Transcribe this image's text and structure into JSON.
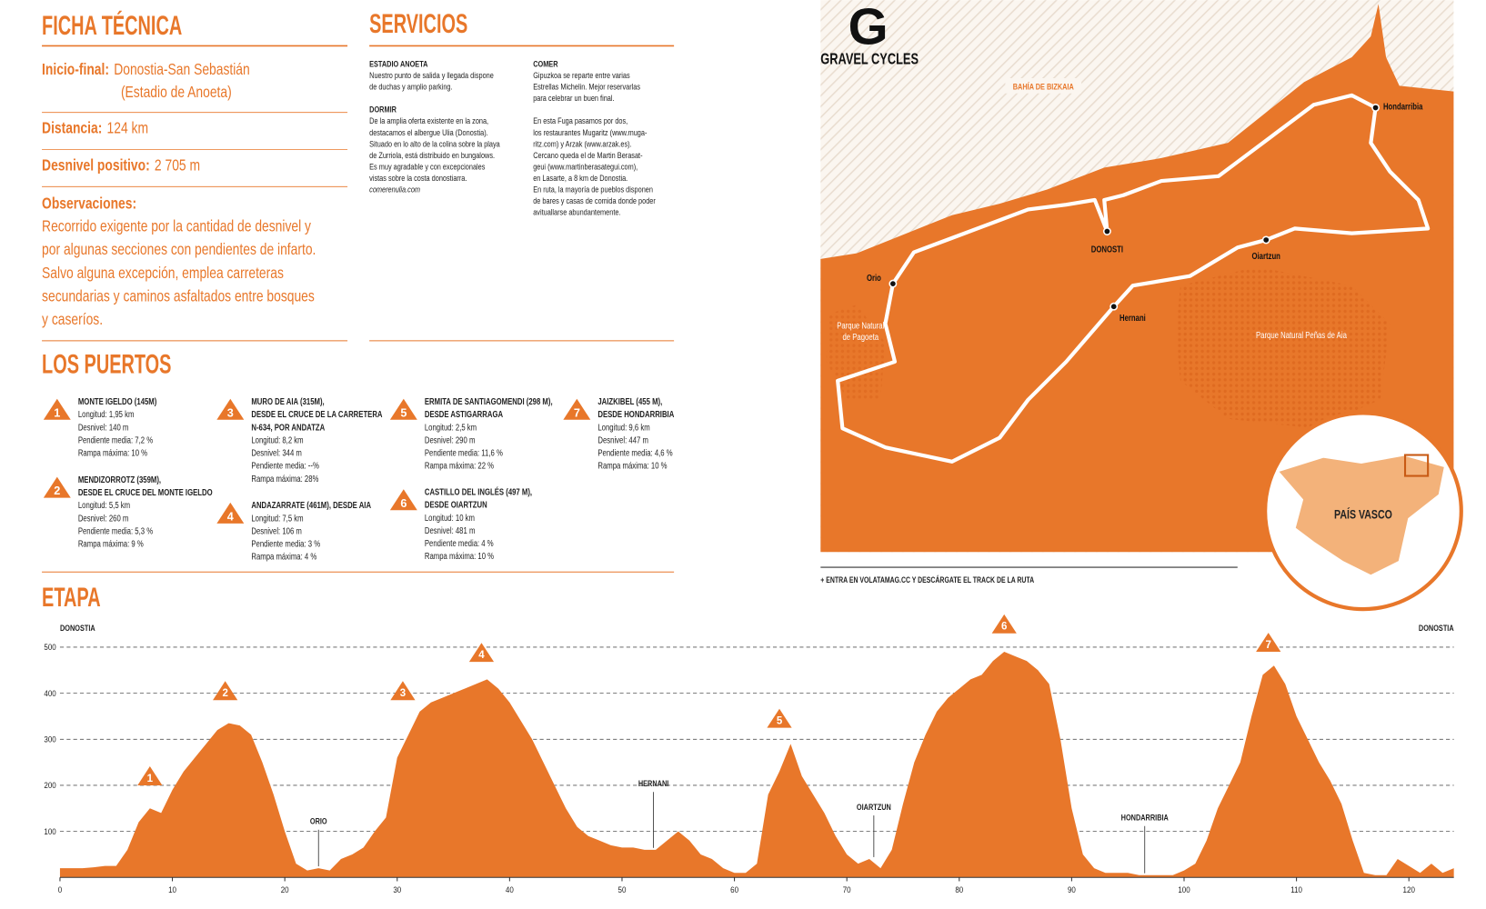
{
  "ficha": {
    "title": "FICHA TÉCNICA",
    "inicio_label": "Inicio-final:",
    "inicio": [
      "Donostia-San Sebastián",
      "(Estadio de Anoeta)"
    ],
    "distancia_label": "Distancia:",
    "distancia": "124 km",
    "desnivel_label": "Desnivel positivo:",
    "desnivel": "2 705 m",
    "observaciones_label": "Observaciones:",
    "observaciones": [
      "Recorrido exigente por la cantidad de desnivel y",
      "por algunas secciones con pendientes de infarto.",
      "Salvo alguna excepción, emplea carreteras",
      "secundarias y caminos asfaltados entre bosques",
      "y caseríos."
    ]
  },
  "servicios": {
    "title": "SERVICIOS",
    "columns": [
      [
        {
          "heading": "ESTADIO ANOETA",
          "lines": [
            "Nuestro punto de salida y llegada dispone",
            "de duchas y amplio parking."
          ]
        },
        {
          "heading": "DORMIR",
          "lines": [
            "De la amplia oferta existente en la zona,",
            "destacamos el albergue Ulia (Donostia).",
            "Situado en lo alto de la colina sobre la playa",
            "de Zurriola, está distribuido en bungalows.",
            "Es muy agradable y con excepcionales",
            "vistas sobre la costa donostiarra.",
            "comerenulia.com"
          ]
        }
      ],
      [
        {
          "heading": "COMER",
          "lines": [
            "Gipuzkoa se reparte entre varias",
            "Estrellas Michelin. Mejor reservarlas",
            "para celebrar un buen final."
          ]
        },
        {
          "lines": [
            "En esta Fuga pasamos por dos,",
            "los restaurantes Mugaritz (www.muga-",
            "ritz.com) y Arzak (www.arzak.es).",
            "Cercano queda el de Martin Berasat-",
            "geui (www.martinberasategui.com),",
            "en Lasarte, a 8 km de Donostia.",
            "En ruta, la mayoría de pueblos disponen",
            "de bares y casas de comida donde poder",
            "avituallarse abundantemente."
          ]
        }
      ]
    ]
  },
  "puertos": {
    "title": "LOS PUERTOS",
    "items": [
      {
        "number": "1",
        "name": [
          "MONTE IGELDO (145M)"
        ],
        "details": [
          "Longitud: 1,95 km",
          "Desnivel: 140 m",
          "Pendiente media: 7,2 %",
          "Rampa máxima: 10 %"
        ]
      },
      {
        "number": "2",
        "name": [
          "MENDIZORROTZ (359M),",
          "DESDE EL CRUCE DEL MONTE IGELDO"
        ],
        "details": [
          "Longitud: 5,5 km",
          "Desnivel: 260 m",
          "Pendiente media: 5,3 %",
          "Rampa máxima: 9 %"
        ]
      },
      {
        "number": "3",
        "name": [
          "MURO DE AIA (315M),",
          "DESDE EL CRUCE DE LA CARRETERA",
          "N-634, POR ANDATZA"
        ],
        "details": [
          "Longitud: 8,2 km",
          "Desnivel: 344 m",
          "Pendiente media: --%",
          "Rampa máxima: 28%"
        ]
      },
      {
        "number": "4",
        "name": [
          "ANDAZARRATE (461M), DESDE AIA"
        ],
        "details": [
          "Longitud: 7,5 km",
          "Desnivel: 106 m",
          "Pendiente media: 3 %",
          "Rampa máxima: 4 %"
        ]
      },
      {
        "number": "5",
        "name": [
          "ERMITA DE SANTIAGOMENDI (298 M),",
          "DESDE ASTIGARRAGA"
        ],
        "details": [
          "Longitud: 2,5 km",
          "Desnivel: 290 m",
          "Pendiente media: 11,6 %",
          "Rampa máxima: 22 %"
        ]
      },
      {
        "number": "6",
        "name": [
          "CASTILLO DEL INGLÉS (497 M),",
          "DESDE OIARTZUN"
        ],
        "details": [
          "Longitud: 10 km",
          "Desnivel: 481 m",
          "Pendiente media: 4 %",
          "Rampa máxima: 10 %"
        ]
      },
      {
        "number": "7",
        "name": [
          "JAIZKIBEL (455 M),",
          "DESDE HONDARRIBIA"
        ],
        "details": [
          "Longitud: 9,6 km",
          "Desnivel: 447 m",
          "Pendiente media: 4,6 %",
          "Rampa máxima: 10 %"
        ]
      }
    ]
  },
  "map": {
    "logo": "G",
    "brand": "GRAVEL CYCLES",
    "sea": "BAHÍA DE BIZKAIA",
    "towns": [
      "Hondarribia",
      "DONOSTI",
      "Oiartzun",
      "Orio",
      "Hernani"
    ],
    "parks": [
      [
        "Parque Natural",
        "de Pagoeta"
      ],
      [
        "Parque Natural Peñas de Aia"
      ]
    ],
    "region": "PAÍS VASCO",
    "footnote": "+ ENTRA EN VOLATAMAG.CC Y DESCÁRGATE EL TRACK DE LA RUTA"
  },
  "chart_data": {
    "type": "area",
    "title": "ETAPA",
    "color": "#e8772a",
    "x": [
      0,
      1,
      2,
      3,
      4,
      5,
      6,
      7,
      8,
      9,
      10,
      11,
      12,
      13,
      14,
      15,
      16,
      17,
      18,
      19,
      20,
      21,
      22,
      23,
      24,
      25,
      26,
      27,
      28,
      29,
      30,
      31,
      32,
      33,
      34,
      35,
      36,
      37,
      38,
      39,
      40,
      41,
      42,
      43,
      44,
      45,
      46,
      47,
      48,
      49,
      50,
      51,
      52,
      53,
      54,
      55,
      56,
      57,
      58,
      59,
      60,
      61,
      62,
      63,
      64,
      65,
      66,
      67,
      68,
      69,
      70,
      71,
      72,
      73,
      74,
      75,
      76,
      77,
      78,
      79,
      80,
      81,
      82,
      83,
      84,
      85,
      86,
      87,
      88,
      89,
      90,
      91,
      92,
      93,
      94,
      95,
      96,
      97,
      98,
      99,
      100,
      101,
      102,
      103,
      104,
      105,
      106,
      107,
      108,
      109,
      110,
      111,
      112,
      113,
      114,
      115,
      116,
      117,
      118,
      119,
      120,
      121,
      122,
      123,
      124
    ],
    "values": [
      20,
      20,
      20,
      22,
      25,
      25,
      60,
      120,
      150,
      140,
      190,
      230,
      260,
      290,
      320,
      335,
      330,
      310,
      250,
      180,
      100,
      30,
      15,
      20,
      15,
      40,
      50,
      65,
      100,
      130,
      260,
      310,
      360,
      380,
      390,
      400,
      410,
      420,
      430,
      410,
      380,
      340,
      300,
      250,
      200,
      150,
      110,
      90,
      80,
      70,
      65,
      65,
      60,
      60,
      80,
      100,
      80,
      50,
      40,
      20,
      10,
      10,
      30,
      180,
      230,
      290,
      220,
      180,
      140,
      90,
      50,
      30,
      40,
      20,
      60,
      160,
      250,
      310,
      360,
      390,
      410,
      430,
      440,
      470,
      490,
      480,
      470,
      450,
      420,
      300,
      150,
      50,
      20,
      10,
      10,
      10,
      5,
      5,
      5,
      5,
      15,
      30,
      80,
      150,
      200,
      250,
      350,
      440,
      460,
      420,
      350,
      300,
      250,
      210,
      160,
      80,
      10,
      5,
      5,
      40,
      25,
      10,
      30,
      10,
      20
    ],
    "xlim": [
      0,
      124
    ],
    "ylim": [
      0,
      500
    ],
    "xticks": [
      0,
      10,
      20,
      30,
      40,
      50,
      60,
      70,
      80,
      90,
      100,
      110,
      120
    ],
    "yticks": [
      100,
      200,
      300,
      400,
      500
    ],
    "grid": true,
    "places": [
      {
        "text": "DONOSTIA",
        "x": 0,
        "y": 535
      },
      {
        "text": "ORIO",
        "x": 23,
        "y": 116
      },
      {
        "text": "HERNANI",
        "x": 52.8,
        "y": 198
      },
      {
        "text": "OIARTZUN",
        "x": 72.4,
        "y": 147
      },
      {
        "text": "HONDARRIBIA",
        "x": 96.5,
        "y": 124
      },
      {
        "text": "DONOSTIA",
        "x": 124,
        "y": 535
      }
    ],
    "markers": [
      {
        "label": "1",
        "x": 8,
        "y": 200
      },
      {
        "label": "2",
        "x": 14.7,
        "y": 385
      },
      {
        "label": "3",
        "x": 30.5,
        "y": 385
      },
      {
        "label": "4",
        "x": 37.5,
        "y": 468
      },
      {
        "label": "5",
        "x": 64,
        "y": 325
      },
      {
        "label": "6",
        "x": 84,
        "y": 530
      },
      {
        "label": "7",
        "x": 107.5,
        "y": 490
      }
    ]
  }
}
